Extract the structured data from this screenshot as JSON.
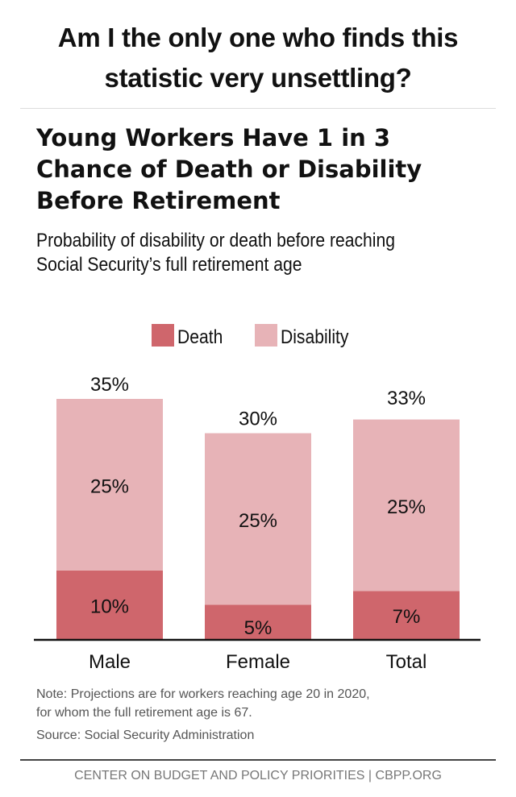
{
  "post": {
    "title_lines": [
      "Am I the only one who finds this",
      "statistic very unsettling?"
    ]
  },
  "chart_data": {
    "type": "bar",
    "stacked": true,
    "title_lines": [
      "Young Workers Have 1 in 3",
      "Chance of Death or Disability",
      "Before Retirement"
    ],
    "subtitle_lines": [
      "Probability of disability or death before reaching",
      "Social Security’s full retirement age"
    ],
    "categories": [
      "Male",
      "Female",
      "Total"
    ],
    "series": [
      {
        "name": "Death",
        "color": "#cf666c",
        "values": [
          10,
          5,
          7
        ],
        "labels": [
          "10%",
          "5%",
          "7%"
        ]
      },
      {
        "name": "Disability",
        "color": "#e7b3b7",
        "values": [
          25,
          25,
          25
        ],
        "labels": [
          "25%",
          "25%",
          "25%"
        ]
      }
    ],
    "totals": [
      35,
      30,
      33
    ],
    "total_labels": [
      "35%",
      "30%",
      "33%"
    ],
    "ylim": [
      0,
      35
    ],
    "grid": false,
    "legend_position": "top-center",
    "note_lines": [
      "Note: Projections are for workers reaching age 20 in 2020,",
      "for whom the full retirement age is 67."
    ],
    "source": "Source: Social Security Administration",
    "footer": "CENTER ON BUDGET AND POLICY PRIORITIES | CBPP.ORG"
  }
}
